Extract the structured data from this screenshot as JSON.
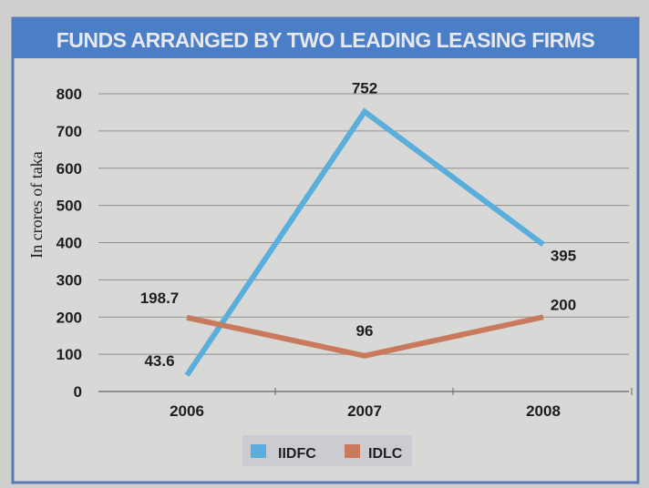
{
  "chart_data": {
    "type": "line",
    "title": "FUNDS ARRANGED BY TWO LEADING LEASING FIRMS",
    "xlabel": "",
    "ylabel": "In crores of taka",
    "categories": [
      "2006",
      "2007",
      "2008"
    ],
    "ylim": [
      0,
      800
    ],
    "yticks": [
      "0",
      "100",
      "200",
      "300",
      "400",
      "500",
      "600",
      "700",
      "800"
    ],
    "grid": true,
    "legend_position": "bottom-center",
    "series": [
      {
        "name": "IIDFC",
        "color": "#5aaedc",
        "values": [
          43.6,
          752,
          395
        ],
        "labels": [
          "43.6",
          "752",
          "395"
        ]
      },
      {
        "name": "IDLC",
        "color": "#c97a5c",
        "values": [
          198.7,
          96,
          200
        ],
        "labels": [
          "198.7",
          "96",
          "200"
        ]
      }
    ]
  }
}
